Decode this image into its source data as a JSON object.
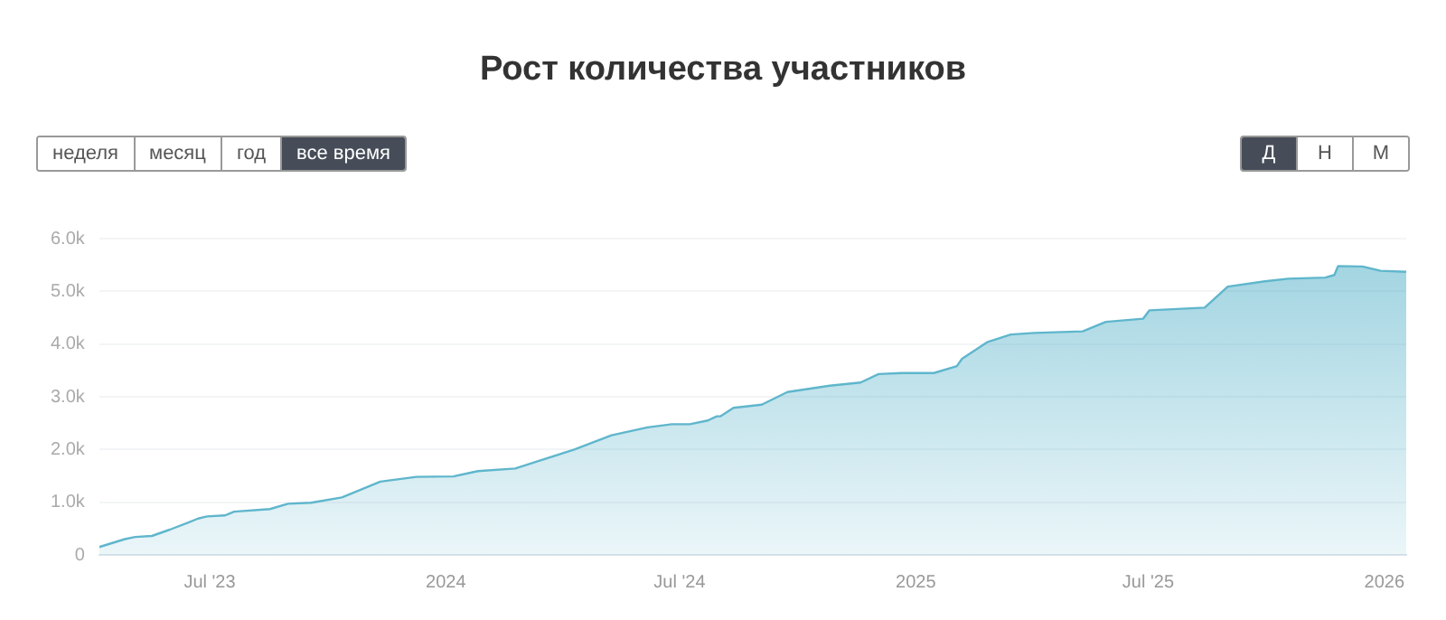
{
  "chart_data": {
    "type": "area",
    "title": "Рост количества участников",
    "annotations": [
      "неделя",
      "месяц",
      "год",
      "все время",
      "Д",
      "Н",
      "М"
    ],
    "x": [
      "2023-04-06",
      "2023-04-26",
      "2023-05-04",
      "2023-05-17",
      "2023-05-31",
      "2023-06-14",
      "2023-06-22",
      "2023-06-29",
      "2023-07-13",
      "2023-07-20",
      "2023-08-17",
      "2023-08-31",
      "2023-09-18",
      "2023-10-12",
      "2023-10-24",
      "2023-11-11",
      "2023-12-09",
      "2024-01-07",
      "2024-01-26",
      "2024-02-24",
      "2024-03-13",
      "2024-04-10",
      "2024-05-09",
      "2024-06-06",
      "2024-06-25",
      "2024-07-09",
      "2024-07-23",
      "2024-07-30",
      "2024-08-02",
      "2024-08-12",
      "2024-09-03",
      "2024-09-23",
      "2024-10-26",
      "2024-11-19",
      "2024-12-03",
      "2024-12-21",
      "2025-01-15",
      "2025-02-02",
      "2025-02-06",
      "2025-02-26",
      "2025-03-16",
      "2025-04-03",
      "2025-05-11",
      "2025-05-29",
      "2025-06-27",
      "2025-07-02",
      "2025-08-14",
      "2025-09-01",
      "2025-09-30",
      "2025-10-18",
      "2025-11-16",
      "2025-11-23",
      "2025-11-26",
      "2025-12-15",
      "2025-12-29",
      "2026-01-18"
    ],
    "series": [
      {
        "color": "#5fb6cc",
        "values": [
          150,
          300,
          340,
          360,
          480,
          610,
          690,
          730,
          750,
          820,
          870,
          970,
          990,
          1090,
          1210,
          1390,
          1480,
          1490,
          1590,
          1640,
          1780,
          2000,
          2270,
          2420,
          2480,
          2480,
          2550,
          2630,
          2630,
          2790,
          2850,
          3090,
          3210,
          3270,
          3430,
          3450,
          3450,
          3580,
          3720,
          4040,
          4180,
          4210,
          4240,
          4420,
          4480,
          4640,
          4690,
          5090,
          5190,
          5240,
          5260,
          5310,
          5480,
          5470,
          5390,
          5370
        ]
      }
    ],
    "xlim": [
      "2023-04-06",
      "2026-01-18"
    ],
    "xticks": [
      {
        "value": "2023-07-01",
        "label": "Jul '23"
      },
      {
        "value": "2024-01-01",
        "label": "2024"
      },
      {
        "value": "2024-07-01",
        "label": "Jul '24"
      },
      {
        "value": "2025-01-01",
        "label": "2025"
      },
      {
        "value": "2025-07-01",
        "label": "Jul '25"
      },
      {
        "value": "2026-01-01",
        "label": "2026"
      }
    ],
    "ylim": [
      0,
      6000
    ],
    "yticks": [
      {
        "value": 0,
        "label": "0"
      },
      {
        "value": 1000,
        "label": "1.0k"
      },
      {
        "value": 2000,
        "label": "2.0k"
      },
      {
        "value": 3000,
        "label": "3.0k"
      },
      {
        "value": 4000,
        "label": "4.0k"
      },
      {
        "value": 5000,
        "label": "5.0k"
      },
      {
        "value": 6000,
        "label": "6.0k"
      }
    ],
    "grid": "y",
    "legend": false,
    "marker": "none",
    "line_style": "solid"
  }
}
